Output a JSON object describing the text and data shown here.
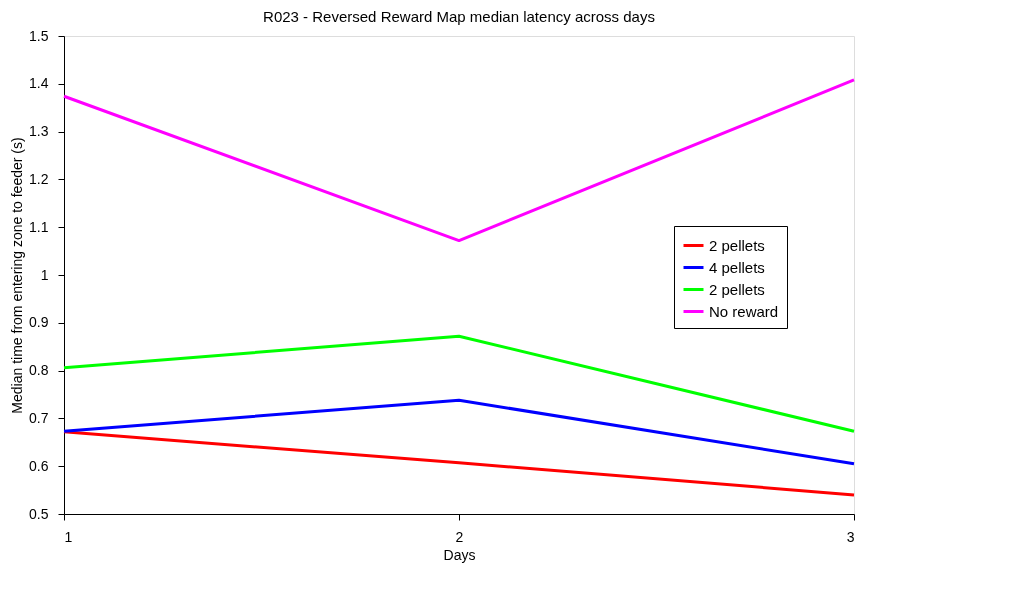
{
  "chart_data": {
    "type": "line",
    "title": "R023 - Reversed Reward Map median latency across days",
    "xlabel": "Days",
    "ylabel": "Median time from entering zone to feeder (s)",
    "x": [
      1,
      2,
      3
    ],
    "xlim": [
      1,
      3
    ],
    "xticks": [
      1,
      2,
      3
    ],
    "ylim": [
      0.5,
      1.5
    ],
    "yticks": [
      0.5,
      0.6,
      0.7,
      0.8,
      0.9,
      1,
      1.1,
      1.2,
      1.3,
      1.4,
      1.5
    ],
    "series": [
      {
        "name": "2 pellets",
        "color": "#ff0000",
        "values": [
          0.672,
          0.607,
          0.54
        ]
      },
      {
        "name": "4 pellets",
        "color": "#0000ff",
        "values": [
          0.673,
          0.738,
          0.605
        ]
      },
      {
        "name": "2 pellets",
        "color": "#00ff00",
        "values": [
          0.806,
          0.872,
          0.673
        ]
      },
      {
        "name": "No reward",
        "color": "#ff00ff",
        "values": [
          1.374,
          1.072,
          1.408
        ]
      }
    ],
    "legend": "right",
    "grid": false,
    "marker": "none",
    "line_style": "solid"
  }
}
